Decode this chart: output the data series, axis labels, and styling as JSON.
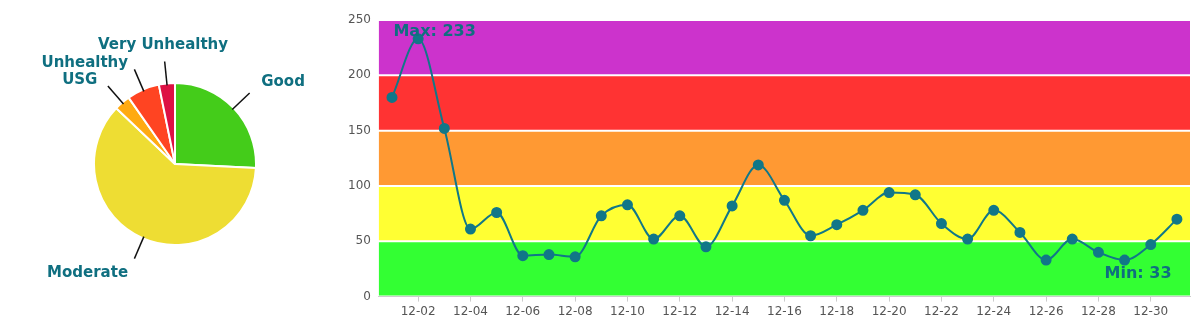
{
  "chart_data": [
    {
      "type": "pie",
      "categories": [
        "Good",
        "Moderate",
        "USG",
        "Unhealthy",
        "Very Unhealthy"
      ],
      "values": [
        25.8,
        61.3,
        3.2,
        6.5,
        3.2
      ],
      "colors": [
        "#44cc1a",
        "#eedd33",
        "#ffaa11",
        "#ff4422",
        "#dd1144"
      ],
      "legend": false
    },
    {
      "type": "line",
      "categories": [
        null,
        "12-02",
        null,
        "12-04",
        null,
        "12-06",
        null,
        "12-08",
        null,
        "12-10",
        null,
        "12-12",
        null,
        "12-14",
        null,
        "12-16",
        null,
        "12-18",
        null,
        "12-20",
        null,
        "12-22",
        null,
        "12-24",
        null,
        "12-26",
        null,
        "12-28",
        null,
        "12-30",
        null
      ],
      "series": [
        {
          "color": "#117788",
          "values": [
            180,
            233,
            152,
            61,
            76,
            37,
            38,
            36,
            73,
            83,
            52,
            73,
            45,
            82,
            119,
            87,
            55,
            65,
            78,
            94,
            92,
            66,
            52,
            78,
            58,
            33,
            52,
            40,
            33,
            47,
            70
          ]
        }
      ],
      "ylim": [
        0,
        250
      ],
      "yticks": [
        0,
        50,
        100,
        150,
        200,
        250
      ],
      "grid": false,
      "legend": false,
      "marker": "circle",
      "line_style": "solid",
      "bands": [
        {
          "axis": "y",
          "from": 0,
          "to": 50,
          "color": "#33ff33"
        },
        {
          "axis": "y",
          "from": 50,
          "to": 100,
          "color": "#ffff33"
        },
        {
          "axis": "y",
          "from": 100,
          "to": 150,
          "color": "#ff9933"
        },
        {
          "axis": "y",
          "from": 150,
          "to": 200,
          "color": "#ff3333"
        },
        {
          "axis": "y",
          "from": 200,
          "to": 250,
          "color": "#cc33cc"
        }
      ],
      "annotations": [
        {
          "text": "Max: 233",
          "x": "12-02",
          "y": 233
        },
        {
          "text": "Min: 33",
          "y": 33
        }
      ]
    }
  ]
}
